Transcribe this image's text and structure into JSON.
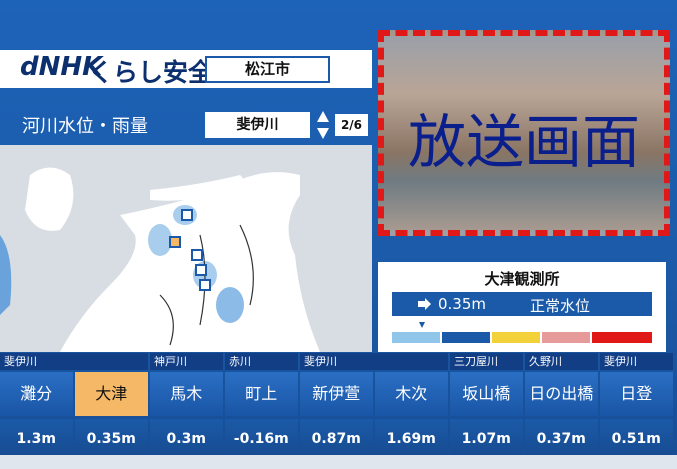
{
  "header": {
    "logo": "dNHK",
    "service": "くらし安全",
    "city": "松江市"
  },
  "section": {
    "title": "河川水位・雨量",
    "river": "斐伊川",
    "page": "2/6"
  },
  "broadcast": {
    "label": "放送画面"
  },
  "station_panel": {
    "name": "大津観測所",
    "level": "0.35m",
    "status": "正常水位"
  },
  "table": {
    "groups": [
      {
        "name": "斐伊川",
        "stations": [
          {
            "name": "灘分",
            "level": "1.3m"
          },
          {
            "name": "大津",
            "level": "0.35m",
            "selected": true
          }
        ]
      },
      {
        "name": "神戸川",
        "stations": [
          {
            "name": "馬木",
            "level": "0.3m"
          }
        ]
      },
      {
        "name": "赤川",
        "stations": [
          {
            "name": "町上",
            "level": "-0.16m"
          }
        ]
      },
      {
        "name": "斐伊川",
        "stations": [
          {
            "name": "新伊萱",
            "level": "0.87m"
          },
          {
            "name": "木次",
            "level": "1.69m"
          }
        ]
      },
      {
        "name": "三刀屋川",
        "stations": [
          {
            "name": "坂山橋",
            "level": "1.07m"
          }
        ]
      },
      {
        "name": "久野川",
        "stations": [
          {
            "name": "日の出橋",
            "level": "0.37m"
          }
        ]
      },
      {
        "name": "斐伊川",
        "stations": [
          {
            "name": "日登",
            "level": "0.51m"
          }
        ]
      }
    ]
  }
}
